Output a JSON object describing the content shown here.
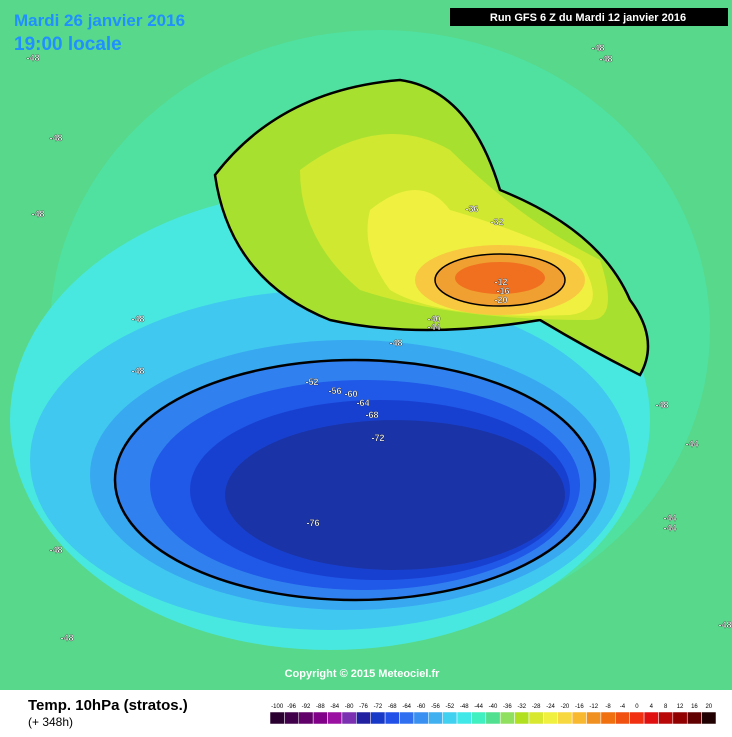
{
  "header": {
    "date": "Mardi 26 janvier 2016",
    "time": "19:00 locale",
    "run": "Run GFS 6 Z du Mardi 12 janvier 2016"
  },
  "map": {
    "contour_labels": [
      "-48",
      "-48",
      "-48",
      "-48",
      "-48",
      "-48",
      "-48",
      "-48",
      "-48",
      "-48",
      "-48",
      "-48",
      "-44",
      "-44",
      "-44",
      "-52",
      "-56",
      "-60",
      "-64",
      "-68",
      "-72",
      "-76",
      "-36",
      "-32",
      "-12",
      "-16",
      "-20",
      "-40",
      "-44"
    ],
    "copyright": "Copyright © 2015 Meteociel.fr"
  },
  "footer": {
    "parameter": "Temp. 10hPa (stratos.)",
    "lead": "(+ 348h)"
  },
  "color_scale": {
    "labels": [
      "-100",
      "-96",
      "-92",
      "-88",
      "-84",
      "-80",
      "-76",
      "-72",
      "-68",
      "-64",
      "-60",
      "-56",
      "-52",
      "-48",
      "-44",
      "-40",
      "-36",
      "-32",
      "-28",
      "-24",
      "-20",
      "-16",
      "-12",
      "-8",
      "-4",
      "0",
      "4",
      "8",
      "12",
      "16",
      "20"
    ],
    "colors": [
      "#2a0030",
      "#40004a",
      "#600068",
      "#800088",
      "#9a10a0",
      "#7a30b0",
      "#2020a0",
      "#1838c8",
      "#2050e8",
      "#3070f0",
      "#3a90f0",
      "#40b0f0",
      "#40d0f0",
      "#40e8e8",
      "#40f0c0",
      "#50e090",
      "#90e060",
      "#b0e020",
      "#d8e830",
      "#f0f040",
      "#f8d840",
      "#f8b830",
      "#f09020",
      "#f07010",
      "#f05010",
      "#f03010",
      "#e01010",
      "#b80808",
      "#900000",
      "#600000",
      "#200000"
    ]
  }
}
